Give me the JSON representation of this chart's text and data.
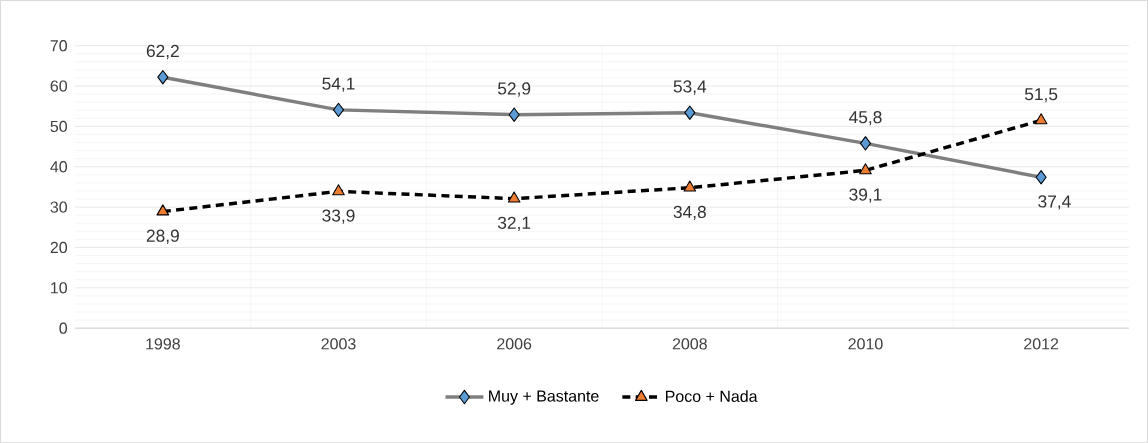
{
  "chart_data": {
    "type": "line",
    "categories": [
      "1998",
      "2003",
      "2006",
      "2008",
      "2010",
      "2012"
    ],
    "series": [
      {
        "name": "Muy + Bastante",
        "color": "#7f7f7f",
        "marker": "diamond",
        "line_style": "solid",
        "values": [
          62.2,
          54.1,
          52.9,
          53.4,
          45.8,
          37.4
        ],
        "value_labels": [
          "62,2",
          "54,1",
          "52,9",
          "53,4",
          "45,8",
          "37,4"
        ]
      },
      {
        "name": "Poco + Nada",
        "color": "#000000",
        "marker": "triangle",
        "line_style": "dashed",
        "values": [
          28.9,
          33.9,
          32.1,
          34.8,
          39.1,
          51.5
        ],
        "value_labels": [
          "28,9",
          "33,9",
          "32,1",
          "34,8",
          "39,1",
          "51,5"
        ]
      }
    ],
    "ylim": [
      0,
      70
    ],
    "yticks": [
      0,
      10,
      20,
      30,
      40,
      50,
      60,
      70
    ],
    "grid": true,
    "legend": "bottom"
  }
}
